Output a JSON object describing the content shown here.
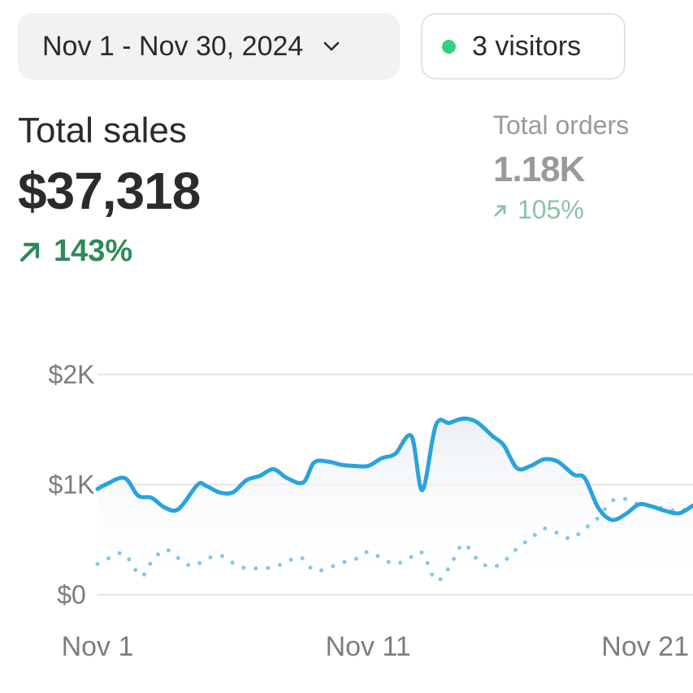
{
  "header": {
    "date_range": "Nov 1 - Nov 30, 2024",
    "visitors": "3 visitors"
  },
  "metrics": {
    "total_sales": {
      "label": "Total sales",
      "value": "$37,318",
      "change": "143%"
    },
    "total_orders": {
      "label": "Total orders",
      "value": "1.18K",
      "change": "105%"
    }
  },
  "colors": {
    "accent": "#2aa3dd",
    "previous": "#86c9e6",
    "positive": "#2f8a59",
    "positive_muted": "#8cc3a4",
    "live_dot": "#33d17a"
  },
  "icons": {
    "chevron": "chevron-down-icon",
    "up_arrow": "arrow-up-right-icon",
    "status": "status-dot-icon"
  },
  "chart_data": {
    "type": "line",
    "xlim": [
      1,
      23
    ],
    "ylim": [
      0,
      2000
    ],
    "yticks": [
      {
        "value": 0,
        "label": "$0"
      },
      {
        "value": 1000,
        "label": "$1K"
      },
      {
        "value": 2000,
        "label": "$2K"
      }
    ],
    "xticks": [
      {
        "value": 1,
        "label": "Nov 1"
      },
      {
        "value": 11,
        "label": "Nov 11"
      },
      {
        "value": 21,
        "label": "Nov 21"
      }
    ],
    "grid": true,
    "series": [
      {
        "style": "solid",
        "x": [
          1,
          1.3,
          2,
          2.5,
          3,
          3.5,
          4,
          4.7,
          5,
          5.5,
          6,
          6.5,
          7,
          7.5,
          8,
          8.6,
          9,
          9.5,
          10,
          10.5,
          11,
          11.5,
          12,
          12.6,
          13,
          13.5,
          14,
          14.5,
          15,
          15.6,
          16,
          16.5,
          17,
          17.5,
          18,
          18.6,
          19,
          19.5,
          20,
          20.5,
          21,
          21.5,
          22,
          22.5,
          23
        ],
        "y": [
          960,
          1000,
          1060,
          900,
          880,
          790,
          780,
          1000,
          990,
          930,
          930,
          1040,
          1080,
          1140,
          1060,
          1020,
          1200,
          1210,
          1180,
          1170,
          1170,
          1240,
          1280,
          1440,
          950,
          1540,
          1560,
          1600,
          1570,
          1440,
          1360,
          1150,
          1170,
          1230,
          1210,
          1090,
          1060,
          790,
          680,
          730,
          820,
          800,
          760,
          740,
          810
        ]
      },
      {
        "style": "dotted",
        "x": [
          1,
          1.5,
          2,
          2.6,
          3,
          3.5,
          4,
          4.5,
          5,
          5.5,
          6,
          6.5,
          7,
          7.5,
          8,
          8.5,
          9,
          9.5,
          10,
          10.5,
          11,
          11.5,
          12,
          12.5,
          13,
          13.5,
          14,
          14.5,
          15,
          15.5,
          16,
          16.5,
          17,
          17.5,
          18,
          18.5,
          19,
          19.5,
          20,
          20.5,
          21,
          21.5,
          22,
          22.5,
          23
        ],
        "y": [
          280,
          340,
          370,
          170,
          300,
          410,
          330,
          260,
          320,
          360,
          290,
          240,
          240,
          250,
          300,
          340,
          220,
          240,
          290,
          320,
          390,
          330,
          280,
          330,
          380,
          130,
          250,
          460,
          330,
          250,
          300,
          420,
          510,
          600,
          560,
          510,
          600,
          700,
          850,
          870,
          820,
          800,
          780,
          760,
          800
        ]
      }
    ]
  }
}
